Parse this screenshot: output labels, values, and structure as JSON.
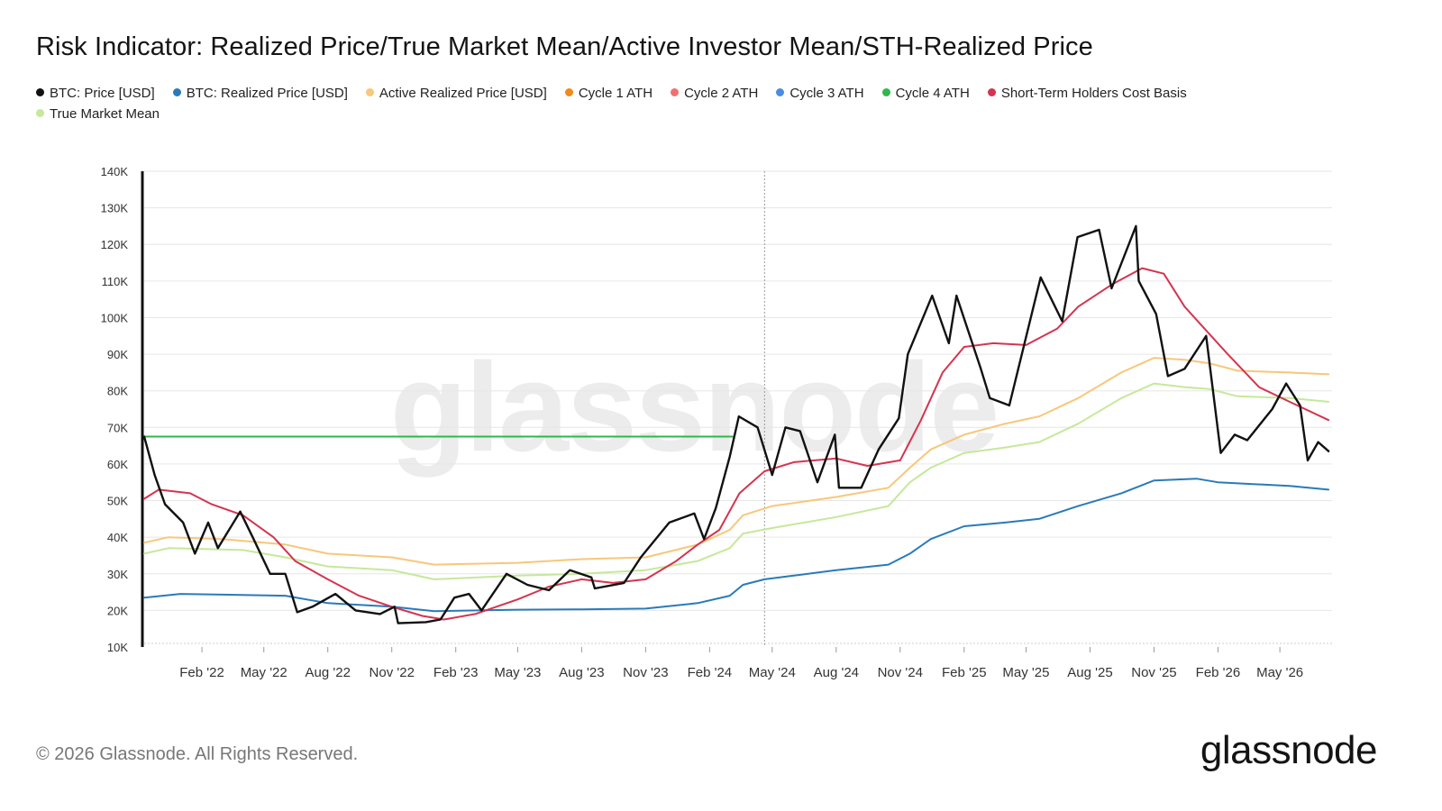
{
  "page": {
    "title": "Risk Indicator: Realized Price/True Market Mean/Active Investor Mean/STH-Realized Price",
    "footer": "© 2026 Glassnode. All Rights Reserved.",
    "brand": "glassnode",
    "watermark": "glassnode"
  },
  "legend": [
    {
      "name": "BTC: Price [USD]",
      "color": "#111111"
    },
    {
      "name": "BTC: Realized Price [USD]",
      "color": "#2a7ab8"
    },
    {
      "name": "Active Realized Price [USD]",
      "color": "#f7c77a"
    },
    {
      "name": "Cycle 1 ATH",
      "color": "#f08a1c"
    },
    {
      "name": "Cycle 2 ATH",
      "color": "#f07070"
    },
    {
      "name": "Cycle 3 ATH",
      "color": "#4a8de0"
    },
    {
      "name": "Cycle 4 ATH",
      "color": "#2eb84a"
    },
    {
      "name": "Short-Term Holders Cost Basis",
      "color": "#d4344f"
    },
    {
      "name": "True Market Mean",
      "color": "#c6e89a"
    }
  ],
  "chart_data": {
    "type": "line",
    "ylim": [
      10000,
      140000
    ],
    "yticks": [
      {
        "v": 10000,
        "label": "10K"
      },
      {
        "v": 20000,
        "label": "20K"
      },
      {
        "v": 30000,
        "label": "30K"
      },
      {
        "v": 40000,
        "label": "40K"
      },
      {
        "v": 50000,
        "label": "50K"
      },
      {
        "v": 60000,
        "label": "60K"
      },
      {
        "v": 70000,
        "label": "70K"
      },
      {
        "v": 80000,
        "label": "80K"
      },
      {
        "v": 90000,
        "label": "90K"
      },
      {
        "v": 100000,
        "label": "100K"
      },
      {
        "v": 110000,
        "label": "110K"
      },
      {
        "v": 120000,
        "label": "120K"
      },
      {
        "v": 130000,
        "label": "130K"
      },
      {
        "v": 140000,
        "label": "140K"
      }
    ],
    "xlim": [
      "2021-11-10",
      "2026-07-15"
    ],
    "xticks": [
      {
        "date": "2022-02-01",
        "label": "Feb '22"
      },
      {
        "date": "2022-05-01",
        "label": "May '22"
      },
      {
        "date": "2022-08-01",
        "label": "Aug '22"
      },
      {
        "date": "2022-11-01",
        "label": "Nov '22"
      },
      {
        "date": "2023-02-01",
        "label": "Feb '23"
      },
      {
        "date": "2023-05-01",
        "label": "May '23"
      },
      {
        "date": "2023-08-01",
        "label": "Aug '23"
      },
      {
        "date": "2023-11-01",
        "label": "Nov '23"
      },
      {
        "date": "2024-02-01",
        "label": "Feb '24"
      },
      {
        "date": "2024-05-01",
        "label": "May '24"
      },
      {
        "date": "2024-08-01",
        "label": "Aug '24"
      },
      {
        "date": "2024-11-01",
        "label": "Nov '24"
      },
      {
        "date": "2025-02-01",
        "label": "Feb '25"
      },
      {
        "date": "2025-05-01",
        "label": "May '25"
      },
      {
        "date": "2025-08-01",
        "label": "Aug '25"
      },
      {
        "date": "2025-11-01",
        "label": "Nov '25"
      },
      {
        "date": "2026-02-01",
        "label": "Feb '26"
      },
      {
        "date": "2026-05-01",
        "label": "May '26"
      }
    ],
    "vline": "2024-04-20",
    "grid": true,
    "legend_position": "top-left",
    "series": [
      {
        "name": "Active Realized Price [USD]",
        "color": "#f7c77a",
        "points": [
          [
            "2021-11-10",
            38500
          ],
          [
            "2021-12-15",
            40000
          ],
          [
            "2022-03-01",
            39500
          ],
          [
            "2022-06-01",
            38000
          ],
          [
            "2022-08-01",
            35500
          ],
          [
            "2022-11-01",
            34500
          ],
          [
            "2023-01-01",
            32500
          ],
          [
            "2023-05-01",
            33000
          ],
          [
            "2023-08-01",
            34000
          ],
          [
            "2023-11-01",
            34500
          ],
          [
            "2024-01-15",
            38000
          ],
          [
            "2024-03-01",
            42000
          ],
          [
            "2024-03-20",
            46000
          ],
          [
            "2024-05-01",
            48500
          ],
          [
            "2024-08-01",
            51000
          ],
          [
            "2024-10-15",
            53500
          ],
          [
            "2024-11-15",
            59000
          ],
          [
            "2024-12-15",
            64000
          ],
          [
            "2025-02-01",
            68000
          ],
          [
            "2025-04-01",
            71000
          ],
          [
            "2025-05-20",
            73000
          ],
          [
            "2025-07-15",
            78000
          ],
          [
            "2025-09-15",
            85000
          ],
          [
            "2025-11-01",
            89000
          ],
          [
            "2025-12-15",
            88500
          ],
          [
            "2026-01-20",
            87500
          ],
          [
            "2026-03-01",
            85500
          ],
          [
            "2026-05-15",
            85000
          ],
          [
            "2026-07-10",
            84500
          ]
        ]
      },
      {
        "name": "True Market Mean",
        "color": "#c6e89a",
        "points": [
          [
            "2021-11-10",
            35500
          ],
          [
            "2021-12-15",
            37000
          ],
          [
            "2022-04-01",
            36500
          ],
          [
            "2022-06-01",
            34500
          ],
          [
            "2022-08-01",
            32000
          ],
          [
            "2022-11-01",
            31000
          ],
          [
            "2023-01-01",
            28500
          ],
          [
            "2023-05-01",
            29500
          ],
          [
            "2023-08-01",
            30000
          ],
          [
            "2023-11-01",
            31000
          ],
          [
            "2024-01-15",
            33500
          ],
          [
            "2024-03-01",
            37000
          ],
          [
            "2024-03-20",
            41000
          ],
          [
            "2024-05-01",
            42500
          ],
          [
            "2024-08-01",
            45500
          ],
          [
            "2024-10-15",
            48500
          ],
          [
            "2024-11-15",
            55000
          ],
          [
            "2024-12-15",
            59000
          ],
          [
            "2025-02-01",
            63000
          ],
          [
            "2025-04-01",
            64500
          ],
          [
            "2025-05-20",
            66000
          ],
          [
            "2025-07-15",
            71000
          ],
          [
            "2025-09-15",
            78000
          ],
          [
            "2025-11-01",
            82000
          ],
          [
            "2025-12-15",
            81000
          ],
          [
            "2026-01-20",
            80500
          ],
          [
            "2026-03-01",
            78500
          ],
          [
            "2026-05-15",
            78000
          ],
          [
            "2026-07-10",
            77000
          ]
        ]
      },
      {
        "name": "BTC: Realized Price [USD]",
        "color": "#2a7ab8",
        "points": [
          [
            "2021-11-10",
            23500
          ],
          [
            "2022-01-01",
            24500
          ],
          [
            "2022-06-01",
            24000
          ],
          [
            "2022-08-01",
            22000
          ],
          [
            "2022-11-01",
            21000
          ],
          [
            "2023-01-01",
            19800
          ],
          [
            "2023-05-01",
            20200
          ],
          [
            "2023-08-01",
            20300
          ],
          [
            "2023-11-01",
            20500
          ],
          [
            "2024-01-15",
            22000
          ],
          [
            "2024-03-01",
            24000
          ],
          [
            "2024-03-20",
            27000
          ],
          [
            "2024-04-20",
            28500
          ],
          [
            "2024-06-01",
            29500
          ],
          [
            "2024-08-01",
            31000
          ],
          [
            "2024-10-15",
            32500
          ],
          [
            "2024-11-15",
            35500
          ],
          [
            "2024-12-15",
            39500
          ],
          [
            "2025-02-01",
            43000
          ],
          [
            "2025-04-01",
            44000
          ],
          [
            "2025-05-20",
            45000
          ],
          [
            "2025-07-15",
            48500
          ],
          [
            "2025-09-15",
            52000
          ],
          [
            "2025-11-01",
            55500
          ],
          [
            "2026-01-01",
            56000
          ],
          [
            "2026-02-01",
            55000
          ],
          [
            "2026-05-15",
            54000
          ],
          [
            "2026-07-10",
            53000
          ]
        ]
      },
      {
        "name": "Short-Term Holders Cost Basis",
        "color": "#d4344f",
        "points": [
          [
            "2021-11-10",
            50500
          ],
          [
            "2021-12-01",
            53000
          ],
          [
            "2022-01-15",
            52000
          ],
          [
            "2022-02-15",
            49000
          ],
          [
            "2022-04-01",
            46000
          ],
          [
            "2022-05-15",
            40000
          ],
          [
            "2022-06-15",
            33500
          ],
          [
            "2022-08-01",
            28500
          ],
          [
            "2022-09-15",
            24000
          ],
          [
            "2022-11-01",
            21000
          ],
          [
            "2022-12-15",
            18500
          ],
          [
            "2023-01-15",
            17500
          ],
          [
            "2023-03-01",
            19000
          ],
          [
            "2023-05-01",
            23000
          ],
          [
            "2023-06-15",
            26500
          ],
          [
            "2023-08-01",
            28500
          ],
          [
            "2023-09-15",
            27500
          ],
          [
            "2023-11-01",
            28500
          ],
          [
            "2023-12-15",
            33500
          ],
          [
            "2024-01-15",
            38000
          ],
          [
            "2024-02-15",
            42000
          ],
          [
            "2024-03-15",
            52000
          ],
          [
            "2024-04-20",
            58000
          ],
          [
            "2024-06-01",
            60500
          ],
          [
            "2024-08-01",
            61500
          ],
          [
            "2024-09-15",
            59500
          ],
          [
            "2024-11-01",
            61000
          ],
          [
            "2024-12-01",
            72000
          ],
          [
            "2025-01-01",
            85000
          ],
          [
            "2025-02-01",
            92000
          ],
          [
            "2025-03-15",
            93000
          ],
          [
            "2025-05-01",
            92500
          ],
          [
            "2025-06-15",
            97000
          ],
          [
            "2025-07-15",
            103000
          ],
          [
            "2025-09-01",
            109000
          ],
          [
            "2025-10-15",
            113500
          ],
          [
            "2025-11-15",
            112000
          ],
          [
            "2025-12-15",
            103000
          ],
          [
            "2026-01-15",
            96500
          ],
          [
            "2026-02-15",
            90000
          ],
          [
            "2026-04-01",
            81000
          ],
          [
            "2026-05-15",
            77000
          ],
          [
            "2026-07-10",
            72000
          ]
        ]
      },
      {
        "name": "Cycle 4 ATH",
        "color": "#2eb84a",
        "points": [
          [
            "2021-11-10",
            67500
          ],
          [
            "2024-03-05",
            67500
          ]
        ]
      },
      {
        "name": "BTC: Price [USD]",
        "color": "#111111",
        "points": [
          [
            "2021-11-10",
            67500
          ],
          [
            "2021-11-25",
            57000
          ],
          [
            "2021-12-10",
            49000
          ],
          [
            "2022-01-05",
            44000
          ],
          [
            "2022-01-22",
            35500
          ],
          [
            "2022-02-10",
            44000
          ],
          [
            "2022-02-24",
            37000
          ],
          [
            "2022-03-28",
            47000
          ],
          [
            "2022-04-15",
            40000
          ],
          [
            "2022-05-10",
            30000
          ],
          [
            "2022-06-01",
            30000
          ],
          [
            "2022-06-18",
            19500
          ],
          [
            "2022-07-10",
            21000
          ],
          [
            "2022-08-12",
            24500
          ],
          [
            "2022-09-10",
            20000
          ],
          [
            "2022-10-15",
            19000
          ],
          [
            "2022-11-05",
            21000
          ],
          [
            "2022-11-10",
            16500
          ],
          [
            "2022-12-20",
            16800
          ],
          [
            "2023-01-10",
            17500
          ],
          [
            "2023-01-30",
            23500
          ],
          [
            "2023-02-20",
            24500
          ],
          [
            "2023-03-10",
            20000
          ],
          [
            "2023-04-15",
            30000
          ],
          [
            "2023-05-15",
            27000
          ],
          [
            "2023-06-15",
            25500
          ],
          [
            "2023-07-15",
            31000
          ],
          [
            "2023-08-15",
            29000
          ],
          [
            "2023-08-20",
            26000
          ],
          [
            "2023-10-01",
            27500
          ],
          [
            "2023-10-25",
            34500
          ],
          [
            "2023-12-05",
            44000
          ],
          [
            "2024-01-10",
            46500
          ],
          [
            "2024-01-24",
            39500
          ],
          [
            "2024-02-10",
            48000
          ],
          [
            "2024-03-01",
            62000
          ],
          [
            "2024-03-14",
            73000
          ],
          [
            "2024-04-10",
            70000
          ],
          [
            "2024-05-01",
            57000
          ],
          [
            "2024-05-20",
            70000
          ],
          [
            "2024-06-10",
            69000
          ],
          [
            "2024-07-05",
            55000
          ],
          [
            "2024-07-30",
            68000
          ],
          [
            "2024-08-05",
            53500
          ],
          [
            "2024-09-06",
            53500
          ],
          [
            "2024-10-01",
            64000
          ],
          [
            "2024-10-30",
            72500
          ],
          [
            "2024-11-12",
            90000
          ],
          [
            "2024-12-17",
            106000
          ],
          [
            "2025-01-10",
            93000
          ],
          [
            "2025-01-21",
            106000
          ],
          [
            "2025-02-25",
            86000
          ],
          [
            "2025-03-10",
            78000
          ],
          [
            "2025-04-07",
            76000
          ],
          [
            "2025-05-22",
            111000
          ],
          [
            "2025-06-22",
            99000
          ],
          [
            "2025-07-14",
            122000
          ],
          [
            "2025-08-14",
            124000
          ],
          [
            "2025-09-01",
            108000
          ],
          [
            "2025-10-06",
            125000
          ],
          [
            "2025-10-10",
            110000
          ],
          [
            "2025-11-04",
            101000
          ],
          [
            "2025-11-21",
            84000
          ],
          [
            "2025-12-15",
            86000
          ],
          [
            "2026-01-15",
            95000
          ],
          [
            "2026-02-05",
            63000
          ],
          [
            "2026-02-25",
            68000
          ],
          [
            "2026-03-15",
            66500
          ],
          [
            "2026-04-20",
            75000
          ],
          [
            "2026-05-10",
            82000
          ],
          [
            "2026-05-30",
            76000
          ],
          [
            "2026-06-10",
            61000
          ],
          [
            "2026-06-25",
            66000
          ],
          [
            "2026-07-10",
            63500
          ]
        ]
      }
    ]
  }
}
